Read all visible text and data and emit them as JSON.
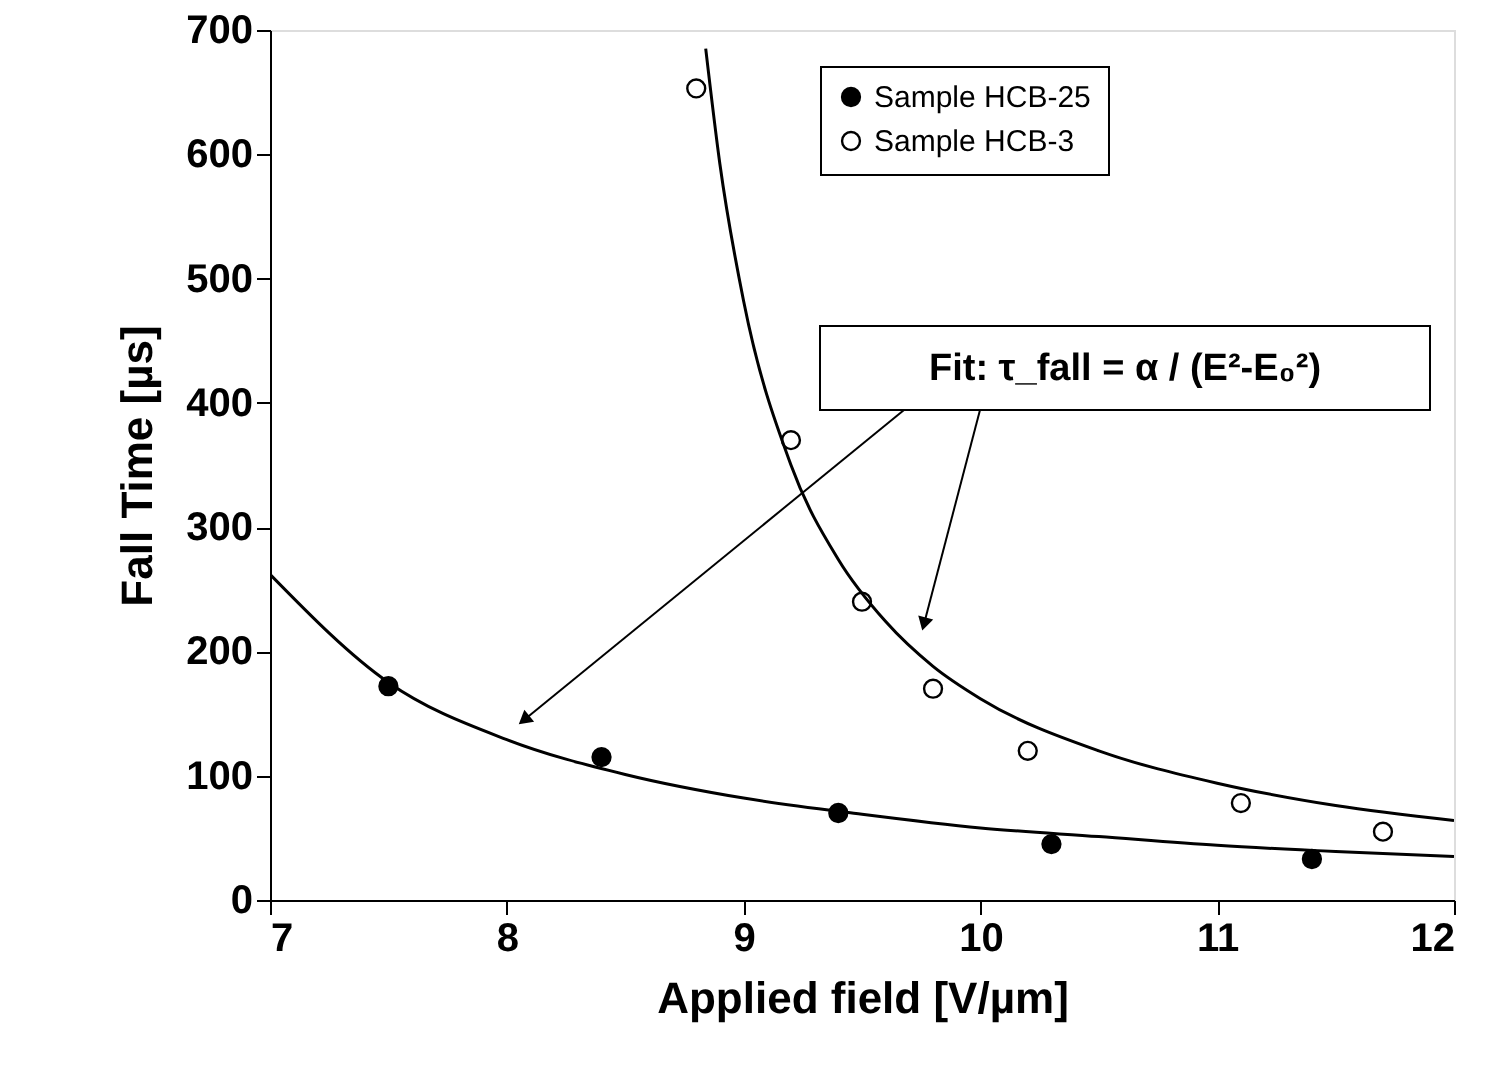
{
  "chart_data": {
    "type": "scatter",
    "xlabel": "Applied field [V/µm]",
    "ylabel": "Fall Time [µs]",
    "xlim": [
      7,
      12
    ],
    "xticks": [
      7,
      8,
      9,
      10,
      11,
      12
    ],
    "ylim": [
      0,
      700
    ],
    "yticks": [
      0,
      100,
      200,
      300,
      400,
      500,
      600,
      700
    ],
    "grid": false,
    "legend": "top right",
    "marker": "circle",
    "annotations": [
      "Fit: τ_fall = α / (E²-E₀²)"
    ],
    "series": [
      {
        "name": "Sample HCB-25",
        "color": "#000000",
        "x": [
          7.5,
          8.4,
          9.4,
          10.3,
          11.4
        ],
        "values": [
          172,
          115,
          70,
          45,
          33
        ]
      },
      {
        "name": "Sample HCB-3",
        "color": "#ffffff",
        "x": [
          8.8,
          9.2,
          9.5,
          9.8,
          10.2,
          11.1,
          11.7
        ],
        "values": [
          653,
          370,
          240,
          170,
          120,
          78,
          55
        ]
      },
      {
        "type": "line",
        "color": "#000000",
        "marker": "none",
        "x": [
          7,
          7.5,
          8,
          8.5,
          9,
          9.5,
          10,
          10.5,
          11,
          11.5,
          12
        ],
        "values": [
          262,
          175,
          129,
          101,
          82,
          69,
          58,
          51,
          44,
          39,
          35
        ]
      },
      {
        "type": "line",
        "color": "#000000",
        "marker": "none",
        "x": [
          8.84,
          8.9,
          9,
          9.2,
          9.4,
          9.6,
          9.8,
          10,
          10.5,
          11,
          11.5,
          12
        ],
        "values": [
          685,
          592,
          482,
          350,
          274,
          224,
          188,
          162,
          120,
          94,
          76,
          64
        ]
      }
    ]
  }
}
